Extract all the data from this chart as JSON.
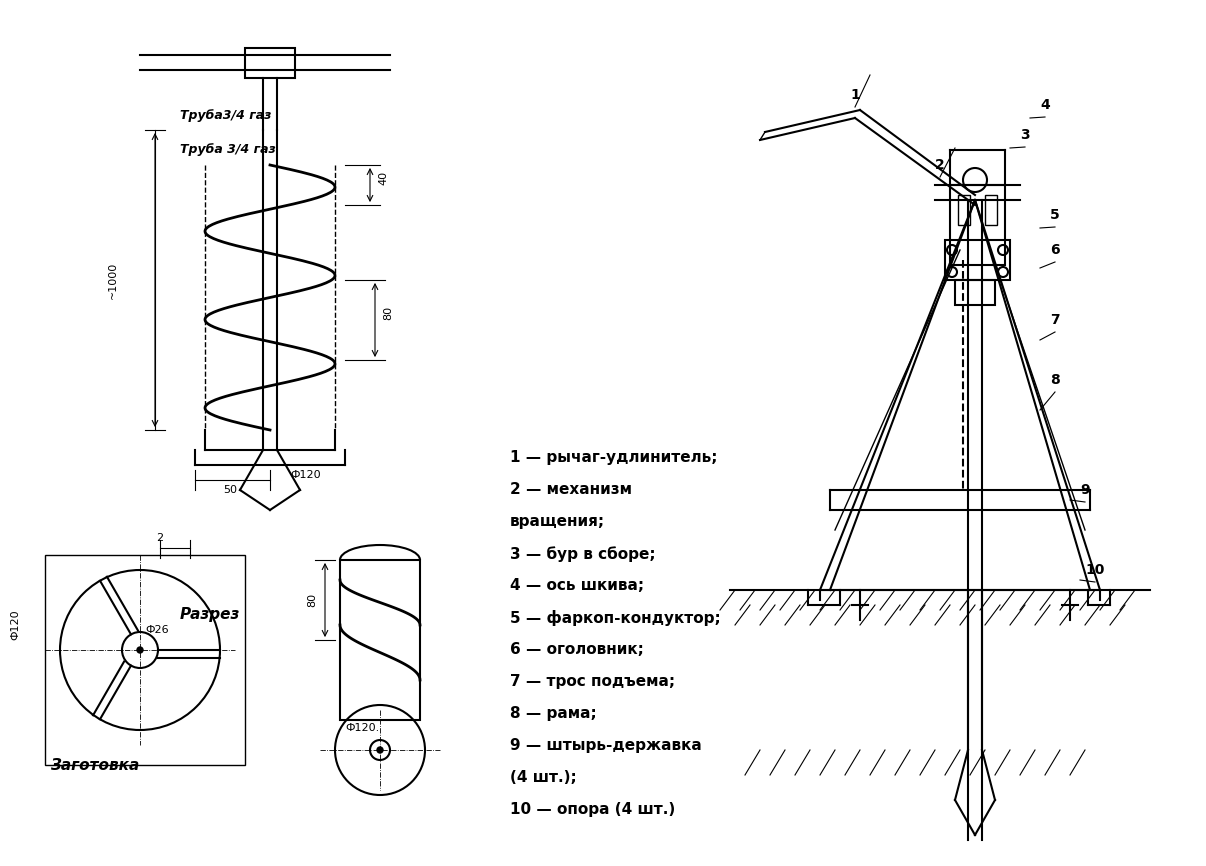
{
  "bg_color": "#ffffff",
  "line_color": "#000000",
  "figsize": [
    12.06,
    8.66
  ],
  "dpi": 100,
  "labels": {
    "truba1": "Труба3/4 газ",
    "truba2": "Труба 3/4 газ",
    "zagotovka": "Заготовка",
    "razrez": "Разрез",
    "dim_1000": "~1000",
    "dim_50": "50",
    "dim_40": "40",
    "dim_80": "80",
    "dim_120": "Ф120",
    "dim_phi26": "Ф26",
    "dim_phi120_bottom": "Ф120.",
    "dim_phi120_left": "Ф120",
    "dim_80_right": "80",
    "dim_2": "2",
    "item1": "1 — рычаг-удлинитель;",
    "item2": "2 — механизм",
    "item2b": "вращения;",
    "item3": "3 — бур в сборе;",
    "item4": "4 — ось шкива;",
    "item5": "5 — фаркоп-кондуктор;",
    "item6": "6 — оголовник;",
    "item7": "7 — трос подъема;",
    "item8": "8 — рама;",
    "item9": "9 — штырь-державка",
    "item9b": "(4 шт.);",
    "item10": "10 — опора (4 шт.)"
  },
  "font_sizes": {
    "label": 9,
    "dim": 8,
    "item": 11,
    "italic": 10
  }
}
